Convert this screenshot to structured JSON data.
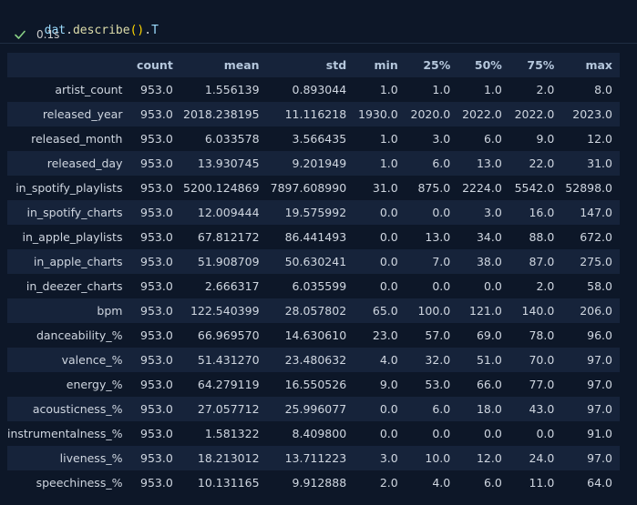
{
  "cell": {
    "code": {
      "var": "dat",
      "dot1": ".",
      "method": "describe",
      "paren_open": "(",
      "paren_close": ")",
      "dot2": ".",
      "attr": "T"
    },
    "status": {
      "icon": "check-icon",
      "duration": "0.1s",
      "success_color": "#89d185"
    }
  },
  "table": {
    "index_header": "",
    "columns": [
      "count",
      "mean",
      "std",
      "min",
      "25%",
      "50%",
      "75%",
      "max"
    ],
    "rows": [
      {
        "index": "artist_count",
        "cells": [
          "953.0",
          "1.556139",
          "0.893044",
          "1.0",
          "1.0",
          "1.0",
          "2.0",
          "8.0"
        ]
      },
      {
        "index": "released_year",
        "cells": [
          "953.0",
          "2018.238195",
          "11.116218",
          "1930.0",
          "2020.0",
          "2022.0",
          "2022.0",
          "2023.0"
        ]
      },
      {
        "index": "released_month",
        "cells": [
          "953.0",
          "6.033578",
          "3.566435",
          "1.0",
          "3.0",
          "6.0",
          "9.0",
          "12.0"
        ]
      },
      {
        "index": "released_day",
        "cells": [
          "953.0",
          "13.930745",
          "9.201949",
          "1.0",
          "6.0",
          "13.0",
          "22.0",
          "31.0"
        ]
      },
      {
        "index": "in_spotify_playlists",
        "cells": [
          "953.0",
          "5200.124869",
          "7897.608990",
          "31.0",
          "875.0",
          "2224.0",
          "5542.0",
          "52898.0"
        ]
      },
      {
        "index": "in_spotify_charts",
        "cells": [
          "953.0",
          "12.009444",
          "19.575992",
          "0.0",
          "0.0",
          "3.0",
          "16.0",
          "147.0"
        ]
      },
      {
        "index": "in_apple_playlists",
        "cells": [
          "953.0",
          "67.812172",
          "86.441493",
          "0.0",
          "13.0",
          "34.0",
          "88.0",
          "672.0"
        ]
      },
      {
        "index": "in_apple_charts",
        "cells": [
          "953.0",
          "51.908709",
          "50.630241",
          "0.0",
          "7.0",
          "38.0",
          "87.0",
          "275.0"
        ]
      },
      {
        "index": "in_deezer_charts",
        "cells": [
          "953.0",
          "2.666317",
          "6.035599",
          "0.0",
          "0.0",
          "0.0",
          "2.0",
          "58.0"
        ]
      },
      {
        "index": "bpm",
        "cells": [
          "953.0",
          "122.540399",
          "28.057802",
          "65.0",
          "100.0",
          "121.0",
          "140.0",
          "206.0"
        ]
      },
      {
        "index": "danceability_%",
        "cells": [
          "953.0",
          "66.969570",
          "14.630610",
          "23.0",
          "57.0",
          "69.0",
          "78.0",
          "96.0"
        ]
      },
      {
        "index": "valence_%",
        "cells": [
          "953.0",
          "51.431270",
          "23.480632",
          "4.0",
          "32.0",
          "51.0",
          "70.0",
          "97.0"
        ]
      },
      {
        "index": "energy_%",
        "cells": [
          "953.0",
          "64.279119",
          "16.550526",
          "9.0",
          "53.0",
          "66.0",
          "77.0",
          "97.0"
        ]
      },
      {
        "index": "acousticness_%",
        "cells": [
          "953.0",
          "27.057712",
          "25.996077",
          "0.0",
          "6.0",
          "18.0",
          "43.0",
          "97.0"
        ]
      },
      {
        "index": "instrumentalness_%",
        "cells": [
          "953.0",
          "1.581322",
          "8.409800",
          "0.0",
          "0.0",
          "0.0",
          "0.0",
          "91.0"
        ]
      },
      {
        "index": "liveness_%",
        "cells": [
          "953.0",
          "18.213012",
          "13.711223",
          "3.0",
          "10.0",
          "12.0",
          "24.0",
          "97.0"
        ]
      },
      {
        "index": "speechiness_%",
        "cells": [
          "953.0",
          "10.131165",
          "9.912888",
          "2.0",
          "4.0",
          "6.0",
          "11.0",
          "64.0"
        ]
      }
    ]
  }
}
